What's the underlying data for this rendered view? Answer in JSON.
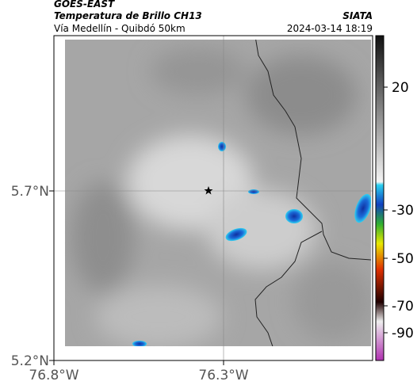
{
  "header": {
    "title": "GOES-EAST",
    "subtitle": "Temperatura de Brillo CH13",
    "route": "Vía Medellín - Quibdó 50km",
    "source": "SIATA",
    "datetime": "2024-03-14 18:19"
  },
  "map": {
    "lat_ticks": [
      "5.7°N",
      "5.2°N"
    ],
    "lon_ticks": [
      "76.8°W",
      "76.3°W"
    ]
  },
  "colorbar": {
    "ticks": [
      20,
      -30,
      -50,
      -70,
      -90
    ]
  }
}
